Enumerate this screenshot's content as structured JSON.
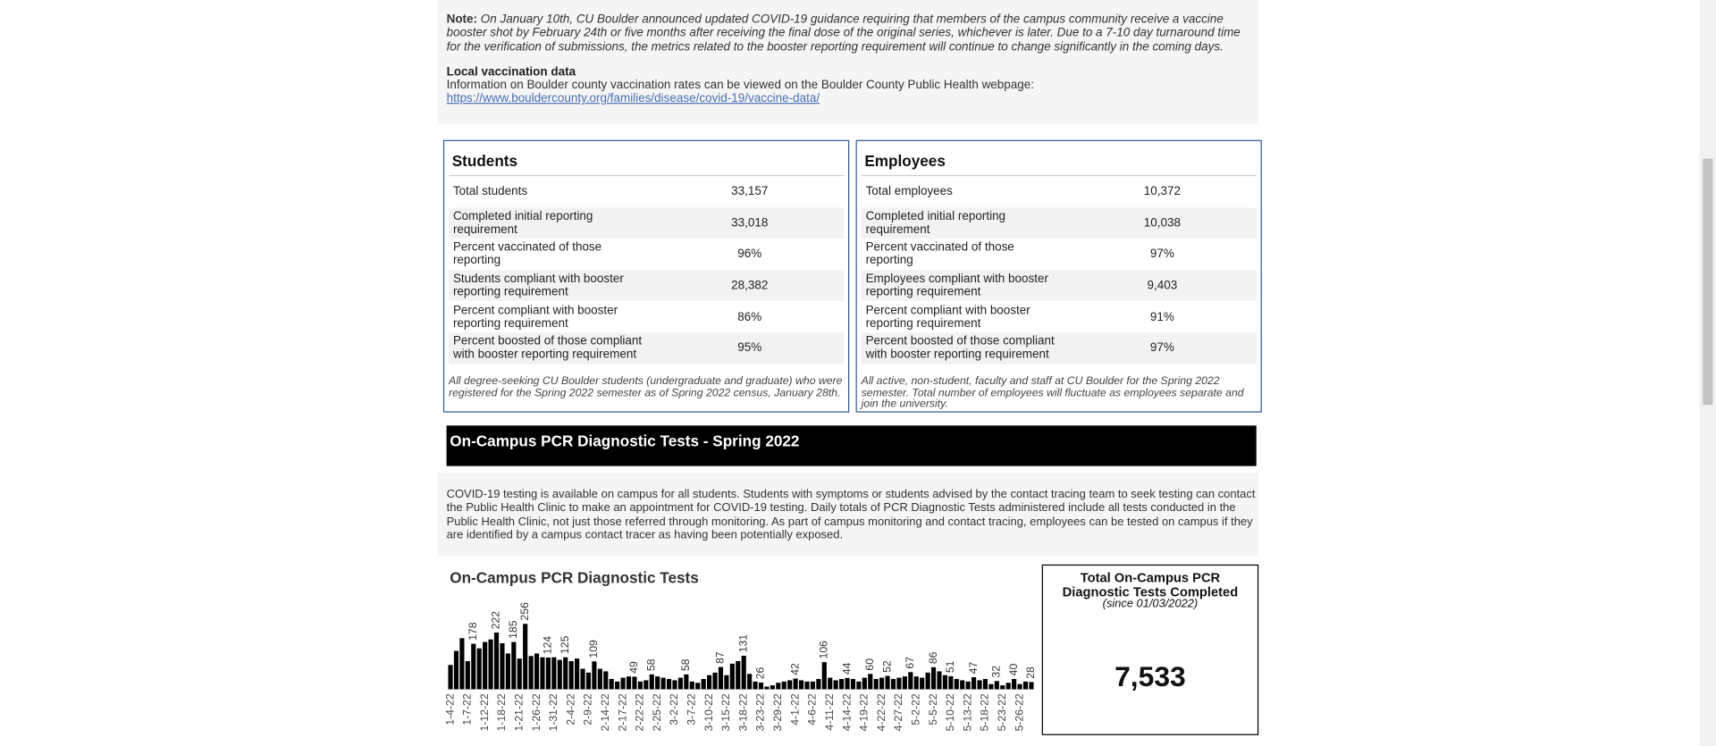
{
  "note": {
    "label": "Note:",
    "text": "On January 10th, CU Boulder announced updated COVID-19 guidance requiring that members of the campus community receive a vaccine booster shot by February 24th or five months after receiving the final dose of the original series, whichever is later. Due to a 7-10 day turnaround time for the verification of submissions, the metrics related to the booster reporting requirement will continue to change significantly in the coming days."
  },
  "local": {
    "title": "Local vaccination data",
    "text": "Information on Boulder county vaccination rates can be viewed on the Boulder County Public Health webpage:",
    "link": "https://www.bouldercounty.org/families/disease/covid-19/vaccine-data/"
  },
  "students": {
    "title": "Students",
    "rows": [
      [
        "Total students",
        "33,157"
      ],
      [
        "Completed initial reporting requirement",
        "33,018"
      ],
      [
        "Percent vaccinated of those reporting",
        "96%"
      ],
      [
        "Students compliant with booster reporting requirement",
        "28,382"
      ],
      [
        "Percent compliant with booster reporting requirement",
        "86%"
      ],
      [
        "Percent boosted of those compliant with booster reporting requirement",
        "95%"
      ]
    ],
    "footnote": "All degree-seeking CU Boulder students (undergraduate and graduate) who were registered for the Spring 2022 semester as of Spring 2022 census, January 28th."
  },
  "employees": {
    "title": "Employees",
    "rows": [
      [
        "Total employees",
        "10,372"
      ],
      [
        "Completed initial reporting requirement",
        "10,038"
      ],
      [
        "Percent vaccinated of those reporting",
        "97%"
      ],
      [
        "Employees compliant with booster reporting requirement",
        "9,403"
      ],
      [
        "Percent compliant with booster reporting requirement",
        "91%"
      ],
      [
        "Percent boosted of those compliant with booster reporting requirement",
        "97%"
      ]
    ],
    "footnote": "All active, non-student, faculty and staff at CU Boulder for the Spring 2022 semester. Total number of employees will fluctuate as employees separate and join the university."
  },
  "pcr": {
    "heading": "On-Campus PCR Diagnostic Tests - Spring 2022",
    "text": "COVID-19 testing is available on campus for all students. Students with symptoms or students advised by the contact tracing team to seek testing can contact the Public Health Clinic to make an appointment for COVID-19 testing. Daily totals of PCR Diagnostic Tests administered include all tests conducted in the Public Health Clinic, not just those referred through monitoring. As part of campus monitoring and contact tracing, employees can be tested on campus if they are identified by a campus contact tracer as having been potentially exposed."
  },
  "total": {
    "title": "Total On-Campus PCR Diagnostic Tests Completed",
    "subtitle": "(since 01/03/2022)",
    "value": "7,533"
  },
  "chart_data": {
    "type": "bar",
    "title": "On-Campus PCR Diagnostic Tests",
    "color": "#000000",
    "ylim": [
      0,
      300
    ],
    "categories": [
      "1-4-22",
      null,
      null,
      "1-7-22",
      null,
      null,
      "1-12-22",
      null,
      null,
      "1-18-22",
      null,
      null,
      "1-21-22",
      null,
      null,
      "1-26-22",
      null,
      null,
      "1-31-22",
      null,
      null,
      "2-4-22",
      null,
      null,
      "2-9-22",
      null,
      null,
      "2-14-22",
      null,
      null,
      "2-17-22",
      null,
      null,
      "2-22-22",
      null,
      null,
      "2-25-22",
      null,
      null,
      "3-2-22",
      null,
      null,
      "3-7-22",
      null,
      null,
      "3-10-22",
      null,
      null,
      "3-15-22",
      null,
      null,
      "3-18-22",
      null,
      null,
      "3-23-22",
      null,
      null,
      "3-29-22",
      null,
      null,
      "4-1-22",
      null,
      null,
      "4-6-22",
      null,
      null,
      "4-11-22",
      null,
      null,
      "4-14-22",
      null,
      null,
      "4-19-22",
      null,
      null,
      "4-22-22",
      null,
      null,
      "4-27-22",
      null,
      null,
      "5-2-22",
      null,
      null,
      "5-5-22",
      null,
      null,
      "5-10-22",
      null,
      null,
      "5-13-22",
      null,
      null,
      "5-18-22",
      null,
      null,
      "5-23-22",
      null,
      null,
      "5-26-22",
      null,
      null
    ],
    "values": [
      95,
      150,
      200,
      110,
      178,
      160,
      185,
      195,
      222,
      180,
      140,
      185,
      120,
      256,
      130,
      140,
      125,
      124,
      125,
      115,
      125,
      110,
      120,
      80,
      65,
      109,
      80,
      70,
      40,
      30,
      45,
      50,
      49,
      30,
      35,
      58,
      50,
      45,
      40,
      35,
      45,
      58,
      30,
      25,
      40,
      55,
      65,
      87,
      55,
      100,
      110,
      131,
      60,
      30,
      26,
      10,
      15,
      25,
      30,
      35,
      42,
      35,
      30,
      30,
      40,
      106,
      45,
      35,
      40,
      44,
      40,
      30,
      45,
      60,
      40,
      45,
      52,
      40,
      45,
      50,
      67,
      50,
      45,
      65,
      86,
      70,
      55,
      51,
      40,
      35,
      30,
      47,
      35,
      40,
      20,
      32,
      15,
      25,
      40,
      20,
      30,
      28
    ],
    "value_labels": [
      null,
      null,
      null,
      null,
      "178",
      null,
      null,
      null,
      "222",
      null,
      null,
      "185",
      null,
      "256",
      null,
      null,
      null,
      "124",
      null,
      null,
      "125",
      null,
      null,
      null,
      null,
      "109",
      null,
      null,
      null,
      null,
      null,
      null,
      "49",
      null,
      null,
      "58",
      null,
      null,
      null,
      null,
      null,
      "58",
      null,
      null,
      null,
      null,
      null,
      "87",
      null,
      null,
      null,
      "131",
      null,
      null,
      "26",
      null,
      null,
      null,
      null,
      null,
      "42",
      null,
      null,
      null,
      null,
      "106",
      null,
      null,
      null,
      "44",
      null,
      null,
      null,
      "60",
      null,
      null,
      "52",
      null,
      null,
      null,
      "67",
      null,
      null,
      null,
      "86",
      null,
      null,
      "51",
      null,
      null,
      null,
      "47",
      null,
      null,
      null,
      "32",
      null,
      null,
      "40",
      null,
      null,
      "28"
    ]
  }
}
